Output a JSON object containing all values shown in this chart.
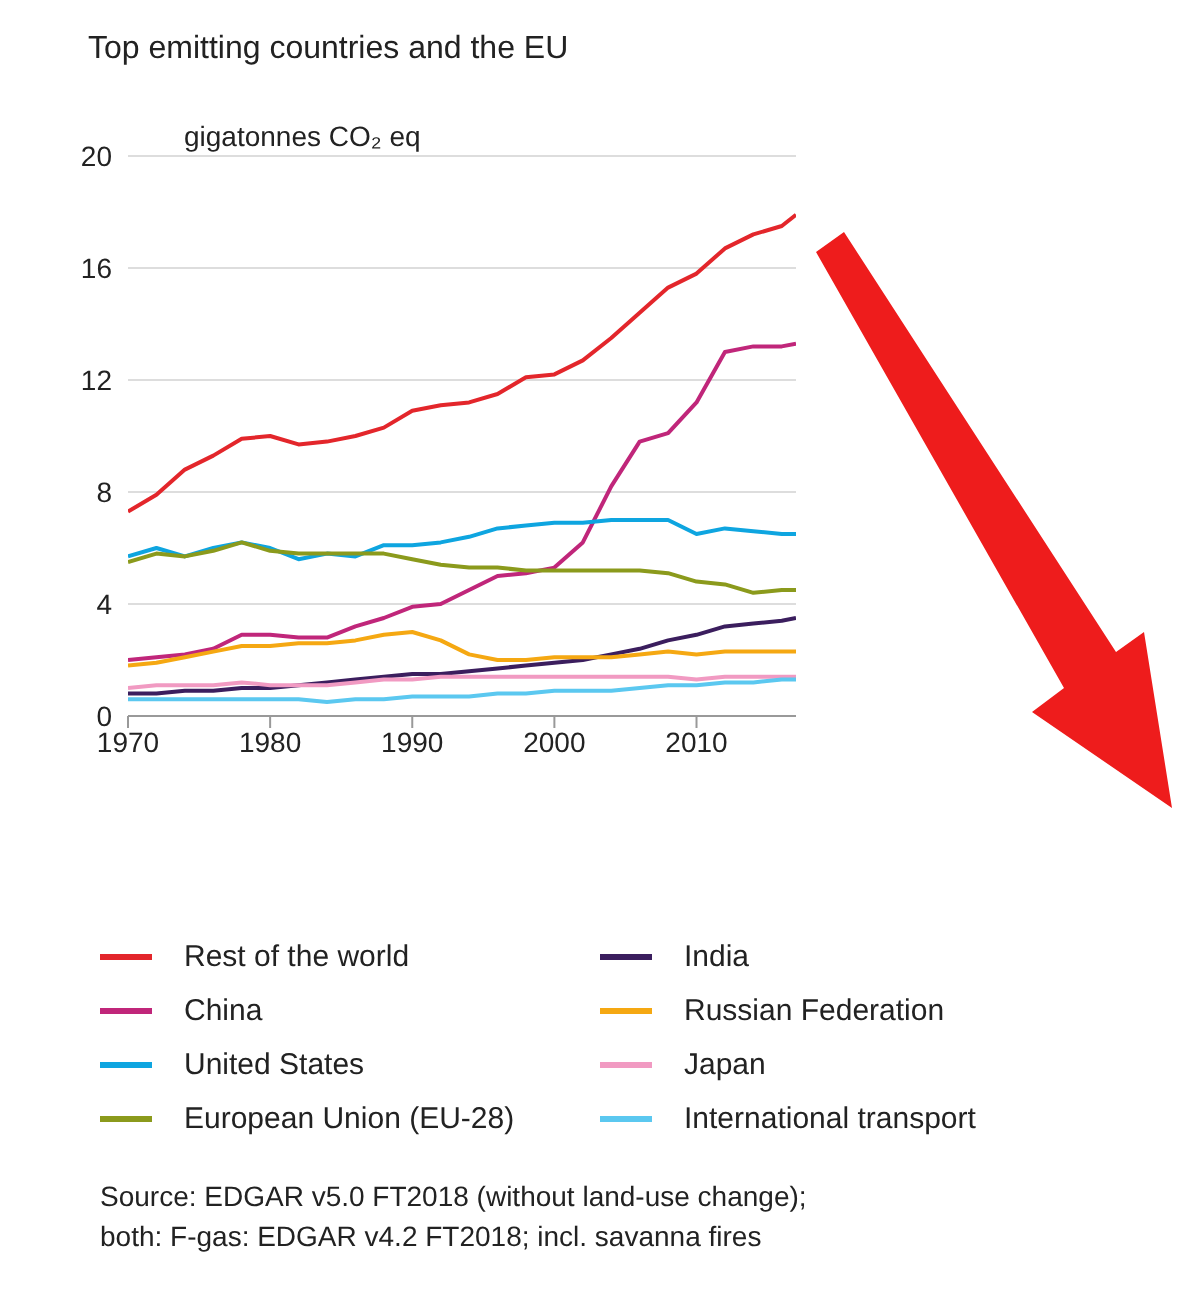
{
  "chart_data": {
    "type": "line",
    "title": "Top emitting countries and the EU",
    "ylabel": "gigatonnes CO₂ eq",
    "x": [
      1970,
      1972,
      1974,
      1976,
      1978,
      1980,
      1982,
      1984,
      1986,
      1988,
      1990,
      1992,
      1994,
      1996,
      1998,
      2000,
      2002,
      2004,
      2006,
      2008,
      2010,
      2012,
      2014,
      2016,
      2017
    ],
    "series": [
      {
        "name": "Rest of the world",
        "color": "#e3262b",
        "values": [
          7.3,
          7.9,
          8.8,
          9.3,
          9.9,
          10.0,
          9.7,
          9.8,
          10.0,
          10.3,
          10.9,
          11.1,
          11.2,
          11.5,
          12.1,
          12.2,
          12.7,
          13.5,
          14.4,
          15.3,
          15.8,
          16.7,
          17.2,
          17.5,
          17.9
        ]
      },
      {
        "name": "China",
        "color": "#c0267a",
        "values": [
          2.0,
          2.1,
          2.2,
          2.4,
          2.9,
          2.9,
          2.8,
          2.8,
          3.2,
          3.5,
          3.9,
          4.0,
          4.5,
          5.0,
          5.1,
          5.3,
          6.2,
          8.2,
          9.8,
          10.1,
          11.2,
          13.0,
          13.2,
          13.2,
          13.3
        ]
      },
      {
        "name": "United States",
        "color": "#0ea5e0",
        "values": [
          5.7,
          6.0,
          5.7,
          6.0,
          6.2,
          6.0,
          5.6,
          5.8,
          5.7,
          6.1,
          6.1,
          6.2,
          6.4,
          6.7,
          6.8,
          6.9,
          6.9,
          7.0,
          7.0,
          7.0,
          6.5,
          6.7,
          6.6,
          6.5,
          6.5
        ]
      },
      {
        "name": "European Union (EU-28)",
        "color": "#8b9a1c",
        "values": [
          5.5,
          5.8,
          5.7,
          5.9,
          6.2,
          5.9,
          5.8,
          5.8,
          5.8,
          5.8,
          5.6,
          5.4,
          5.3,
          5.3,
          5.2,
          5.2,
          5.2,
          5.2,
          5.2,
          5.1,
          4.8,
          4.7,
          4.4,
          4.5,
          4.5
        ]
      },
      {
        "name": "India",
        "color": "#3b1e5e",
        "values": [
          0.8,
          0.8,
          0.9,
          0.9,
          1.0,
          1.0,
          1.1,
          1.2,
          1.3,
          1.4,
          1.5,
          1.5,
          1.6,
          1.7,
          1.8,
          1.9,
          2.0,
          2.2,
          2.4,
          2.7,
          2.9,
          3.2,
          3.3,
          3.4,
          3.5
        ]
      },
      {
        "name": "Russian Federation",
        "color": "#f5a812",
        "values": [
          1.8,
          1.9,
          2.1,
          2.3,
          2.5,
          2.5,
          2.6,
          2.6,
          2.7,
          2.9,
          3.0,
          2.7,
          2.2,
          2.0,
          2.0,
          2.1,
          2.1,
          2.1,
          2.2,
          2.3,
          2.2,
          2.3,
          2.3,
          2.3,
          2.3
        ]
      },
      {
        "name": "Japan",
        "color": "#f19ac2",
        "values": [
          1.0,
          1.1,
          1.1,
          1.1,
          1.2,
          1.1,
          1.1,
          1.1,
          1.2,
          1.3,
          1.3,
          1.4,
          1.4,
          1.4,
          1.4,
          1.4,
          1.4,
          1.4,
          1.4,
          1.4,
          1.3,
          1.4,
          1.4,
          1.4,
          1.4
        ]
      },
      {
        "name": "International transport",
        "color": "#5bc8f0",
        "values": [
          0.6,
          0.6,
          0.6,
          0.6,
          0.6,
          0.6,
          0.6,
          0.5,
          0.6,
          0.6,
          0.7,
          0.7,
          0.7,
          0.8,
          0.8,
          0.9,
          0.9,
          0.9,
          1.0,
          1.1,
          1.1,
          1.2,
          1.2,
          1.3,
          1.3
        ]
      }
    ],
    "xlim": [
      1970,
      2017
    ],
    "xticks": [
      1970,
      1980,
      1990,
      2000,
      2010
    ],
    "ylim": [
      0,
      20
    ],
    "yticks": [
      0,
      4,
      8,
      12,
      16,
      20
    ],
    "grid": "y",
    "legend": "bottom",
    "marker": "none",
    "line_style": "solid",
    "annotations": [
      "Source: EDGAR v5.0 FT2018 (without land-use change);",
      "both: F-gas: EDGAR v4.2 FT2018; incl. savanna fires"
    ]
  }
}
